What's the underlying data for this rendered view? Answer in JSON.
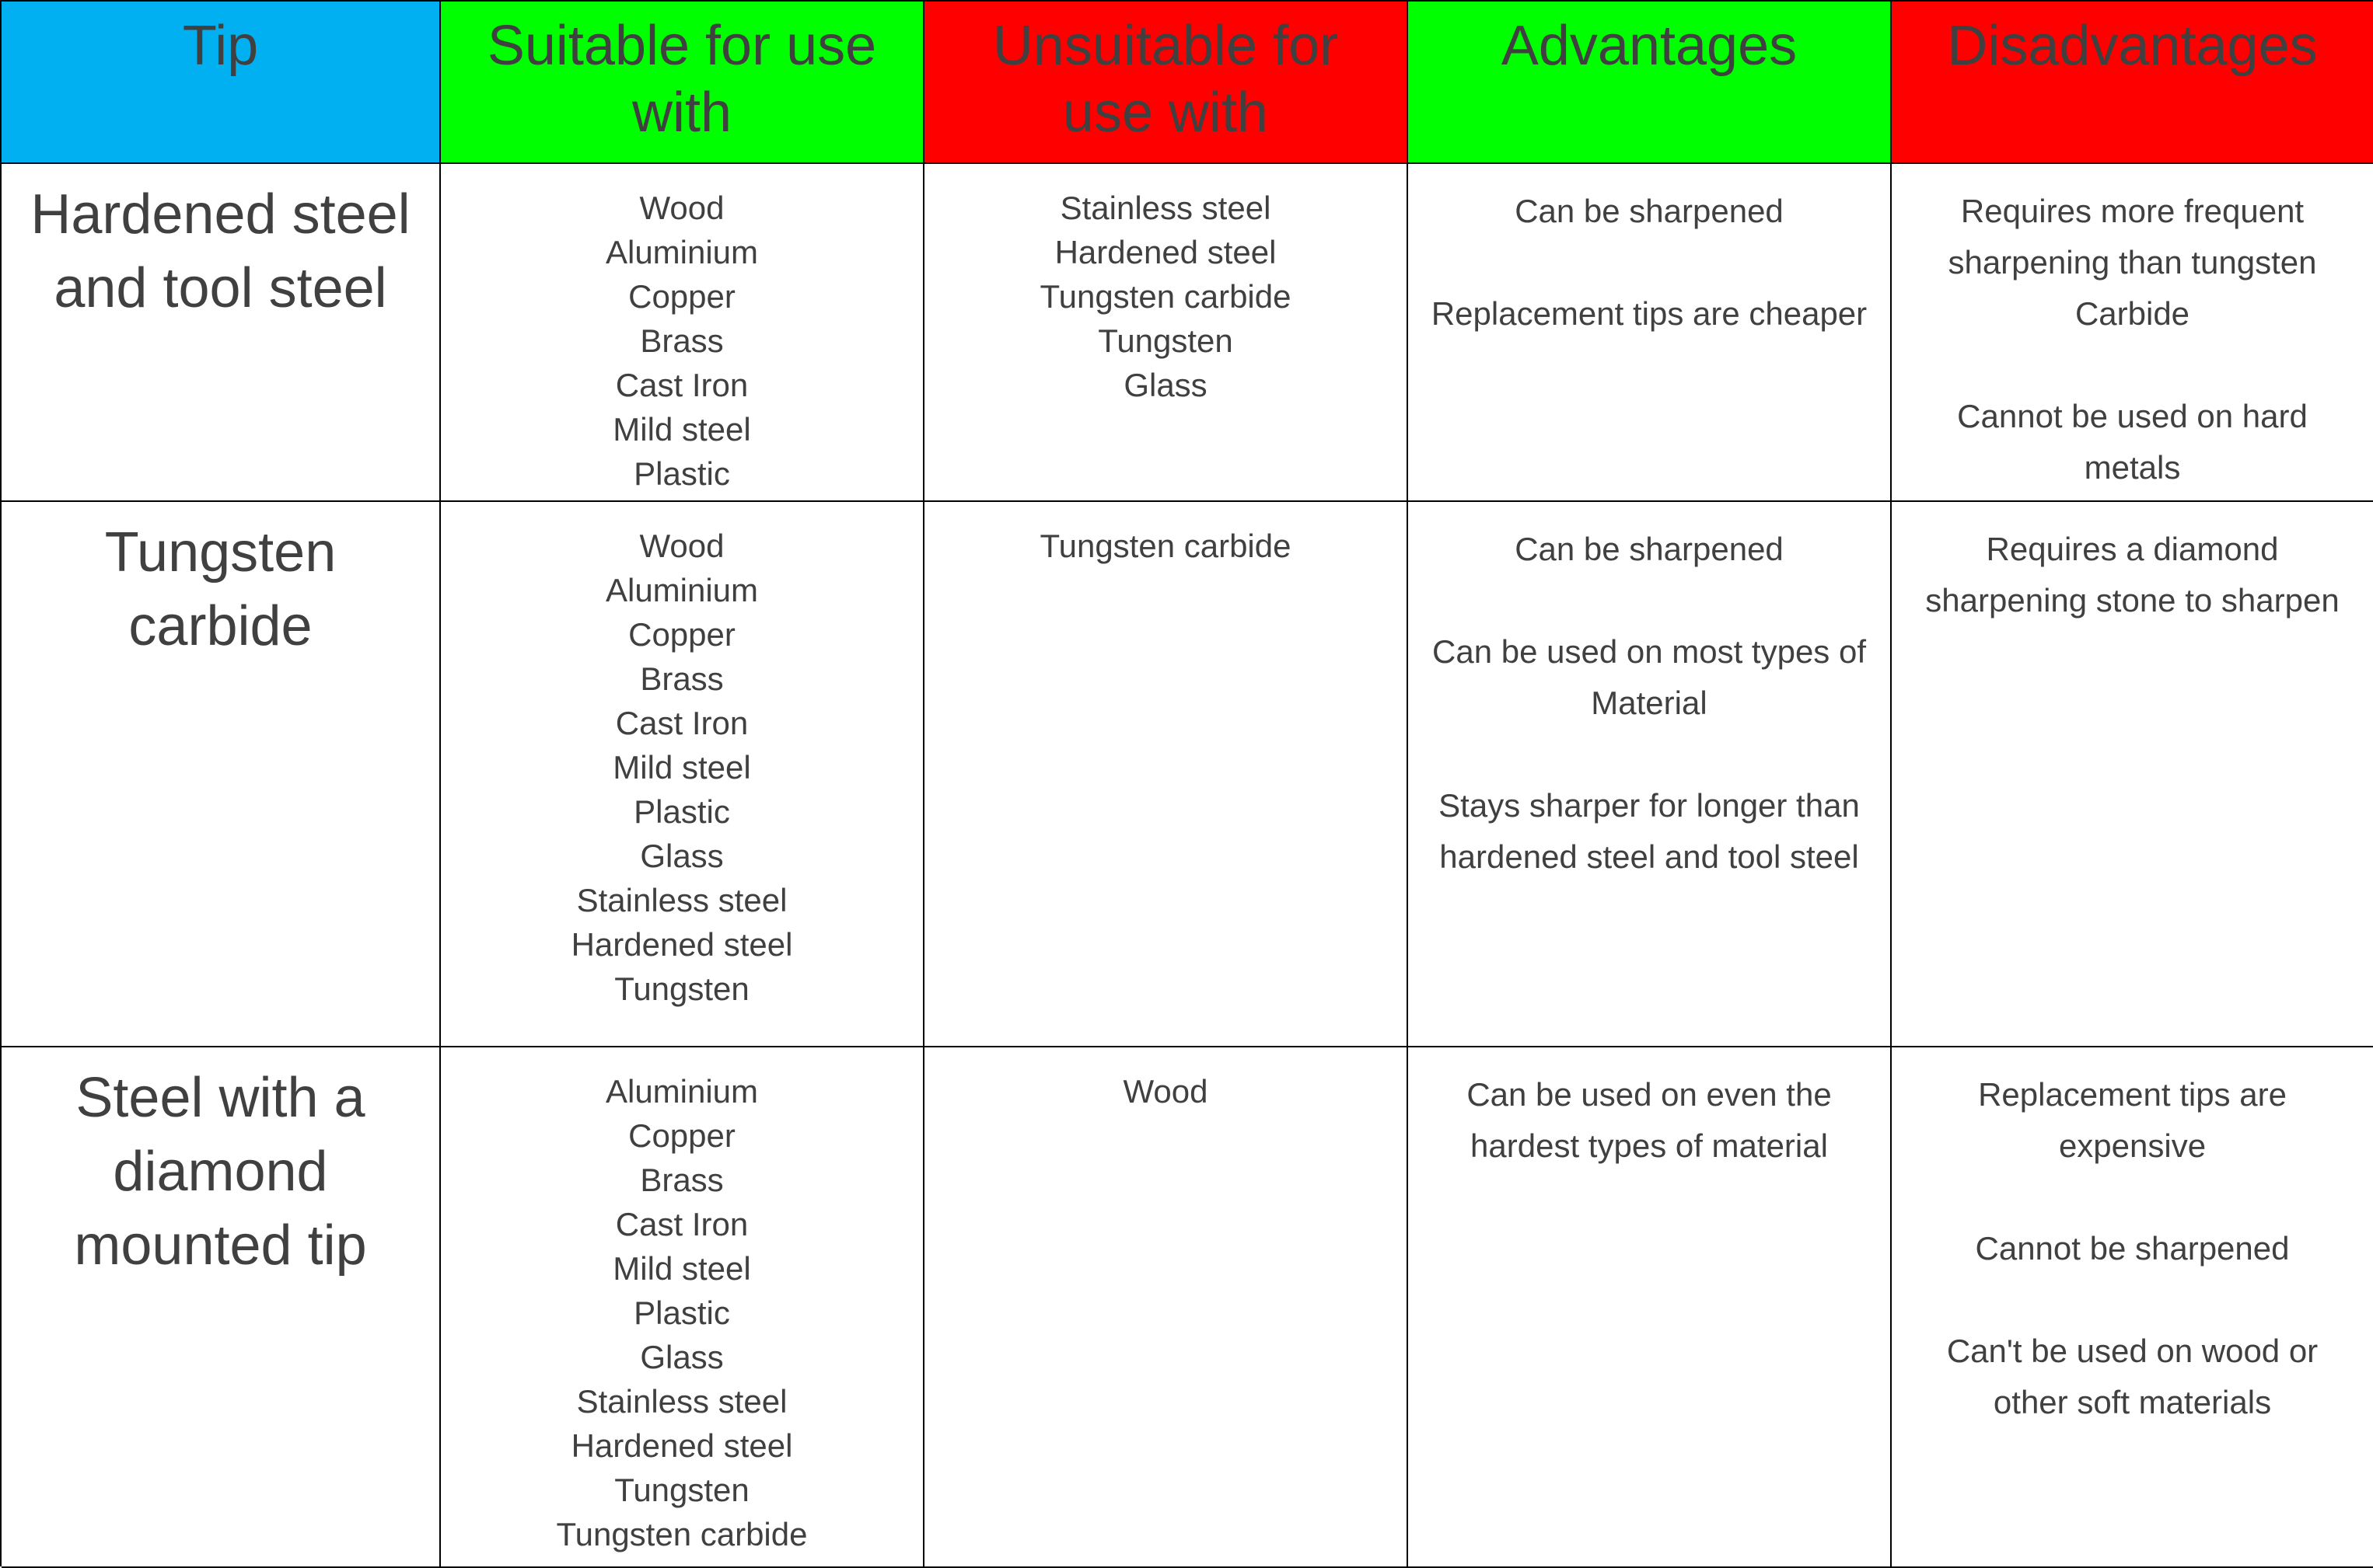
{
  "colors": {
    "tip_header": "#00B0F0",
    "suitable_header": "#00FF00",
    "unsuitable_header": "#FF0000",
    "advantages_header": "#00FF00",
    "disadvantages_header": "#FF0000",
    "text": "#404040",
    "border": "#000000"
  },
  "headers": {
    "tip": [
      "Tip"
    ],
    "suitable": [
      "Suitable for use",
      "with"
    ],
    "unsuitable": [
      "Unsuitable for",
      "use with"
    ],
    "advantages": [
      "Advantages"
    ],
    "disadvantages": [
      "Disadvantages"
    ]
  },
  "rows": [
    {
      "tip": [
        "Hardened steel",
        "and tool steel"
      ],
      "suitable": [
        "Wood",
        "Aluminium",
        "Copper",
        "Brass",
        "Cast Iron",
        "Mild steel",
        "Plastic"
      ],
      "unsuitable": [
        "Stainless steel",
        "Hardened steel",
        "Tungsten carbide",
        "Tungsten",
        "Glass"
      ],
      "advantages": [
        [
          "Can be sharpened"
        ],
        [
          "Replacement tips are cheaper"
        ]
      ],
      "disadvantages": [
        [
          "Requires more frequent",
          "sharpening than tungsten",
          "Carbide"
        ],
        [
          "Cannot be used on hard",
          "metals"
        ]
      ]
    },
    {
      "tip": [
        "Tungsten",
        "carbide"
      ],
      "suitable": [
        "Wood",
        "Aluminium",
        "Copper",
        "Brass",
        "Cast Iron",
        "Mild steel",
        "Plastic",
        "Glass",
        "Stainless steel",
        "Hardened steel",
        "Tungsten"
      ],
      "unsuitable": [
        "Tungsten carbide"
      ],
      "advantages": [
        [
          "Can be sharpened"
        ],
        [
          "Can be used on most types of",
          "Material"
        ],
        [
          "Stays sharper for longer than",
          "hardened steel and tool steel"
        ]
      ],
      "disadvantages": [
        [
          "Requires a diamond",
          "sharpening stone to sharpen"
        ]
      ]
    },
    {
      "tip": [
        "Steel with a",
        "diamond",
        "mounted tip"
      ],
      "suitable": [
        "Aluminium",
        "Copper",
        "Brass",
        "Cast Iron",
        "Mild steel",
        "Plastic",
        "Glass",
        "Stainless steel",
        "Hardened steel",
        "Tungsten",
        "Tungsten carbide"
      ],
      "unsuitable": [
        "Wood"
      ],
      "advantages": [
        [
          "Can be used on even the",
          "hardest types of material"
        ]
      ],
      "disadvantages": [
        [
          "Replacement tips are",
          "expensive"
        ],
        [
          "Cannot be sharpened"
        ],
        [
          "Can't be used on wood or",
          "other soft materials"
        ]
      ]
    }
  ]
}
